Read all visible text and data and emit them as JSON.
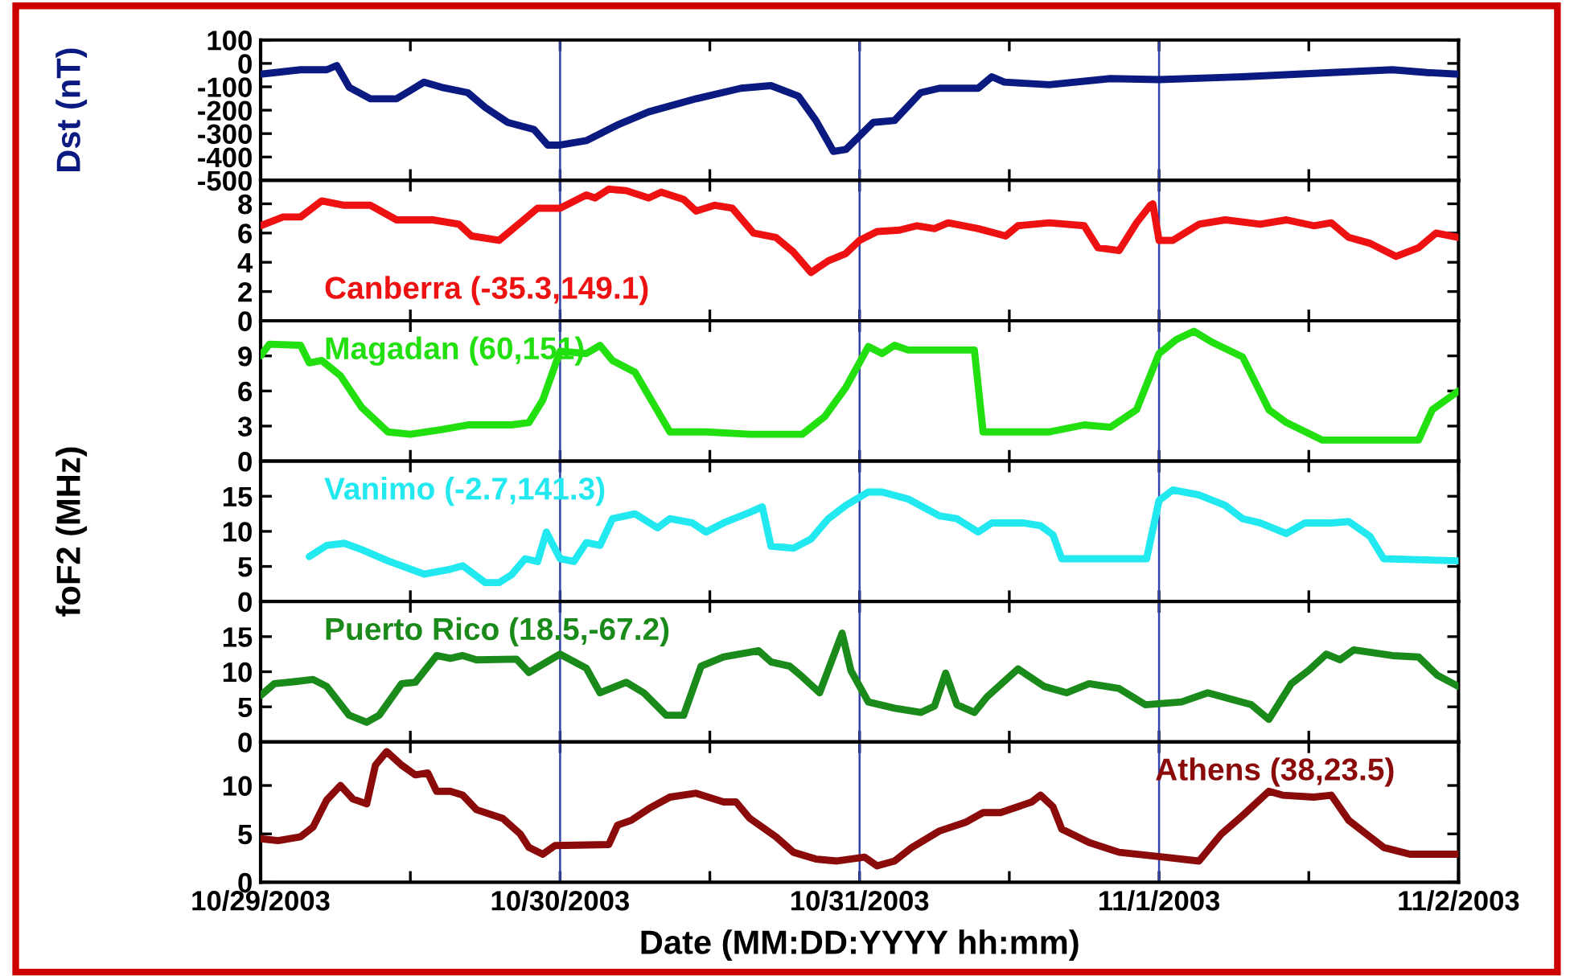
{
  "chart_data": [
    {
      "type": "line",
      "ylabel": "Dst (nT)",
      "xlim": [
        "2003-10-29",
        "2003-11-02"
      ],
      "ylim": [
        -500,
        100
      ],
      "yticks": [
        100,
        0,
        -100,
        -200,
        -300,
        -400,
        -500
      ],
      "tick_labels": "y",
      "grid": false,
      "xticks": [
        {
          "value": "2003-10-29",
          "label": null
        },
        {
          "value": "2003-10-29T12:00",
          "label": null
        },
        {
          "value": "2003-10-30",
          "label": null
        },
        {
          "value": "2003-10-30T12:00",
          "label": null
        },
        {
          "value": "2003-10-31",
          "label": null
        },
        {
          "value": "2003-10-31T12:00",
          "label": null
        },
        {
          "value": "2003-11-01",
          "label": null
        },
        {
          "value": "2003-11-01T12:00",
          "label": null
        },
        {
          "value": "2003-11-02",
          "label": null
        }
      ],
      "ref_lines": [
        {
          "axis": "x",
          "value": "2003-10-30",
          "color": "#3344aa"
        },
        {
          "axis": "x",
          "value": "2003-10-31",
          "color": "#3344aa"
        },
        {
          "axis": "x",
          "value": "2003-11-01",
          "color": "#3344aa"
        }
      ],
      "series": [
        {
          "color": "#0a1a80",
          "x": [
            "2003-10-29T00:00",
            "2003-10-29T03:12",
            "2003-10-29T05:18",
            "2003-10-29T06:06",
            "2003-10-29T07:06",
            "2003-10-29T08:48",
            "2003-10-29T10:54",
            "2003-10-29T13:06",
            "2003-10-29T14:30",
            "2003-10-29T16:36",
            "2003-10-29T18:00",
            "2003-10-29T19:48",
            "2003-10-29T21:54",
            "2003-10-29T23:00",
            "2003-10-30T00:00",
            "2003-10-30T02:06",
            "2003-10-30T04:36",
            "2003-10-30T07:06",
            "2003-10-30T10:54",
            "2003-10-30T14:30",
            "2003-10-30T16:54",
            "2003-10-30T19:06",
            "2003-10-30T20:30",
            "2003-10-30T21:54",
            "2003-10-30T22:54",
            "2003-10-31T01:06",
            "2003-10-31T02:48",
            "2003-10-31T04:54",
            "2003-10-31T06:24",
            "2003-10-31T09:30",
            "2003-10-31T10:36",
            "2003-10-31T11:36",
            "2003-10-31T15:12",
            "2003-10-31T20:06",
            "2003-11-01T00:00",
            "2003-11-01T06:42",
            "2003-11-01T13:48",
            "2003-11-01T18:42",
            "2003-11-01T21:30",
            "2003-11-02T00:00"
          ],
          "values": [
            -46,
            -27,
            -27,
            -9,
            -102,
            -151,
            -151,
            -80,
            -102,
            -125,
            -188,
            -252,
            -282,
            -349,
            -349,
            -330,
            -263,
            -207,
            -151,
            -106,
            -95,
            -140,
            -244,
            -376,
            -368,
            -252,
            -244,
            -125,
            -106,
            -106,
            -57,
            -80,
            -91,
            -65,
            -69,
            -57,
            -39,
            -27,
            -39,
            -46
          ]
        }
      ]
    },
    {
      "type": "line",
      "xlim": [
        "2003-10-29",
        "2003-11-02"
      ],
      "ylim": [
        0,
        9.6
      ],
      "yticks": [
        0,
        2,
        4,
        6,
        8
      ],
      "tick_labels": "y",
      "grid": false,
      "legend": "bottom left",
      "xticks": [
        {
          "value": "2003-10-29",
          "label": null
        },
        {
          "value": "2003-10-29T12:00",
          "label": null
        },
        {
          "value": "2003-10-30",
          "label": null
        },
        {
          "value": "2003-10-30T12:00",
          "label": null
        },
        {
          "value": "2003-10-31",
          "label": null
        },
        {
          "value": "2003-10-31T12:00",
          "label": null
        },
        {
          "value": "2003-11-01",
          "label": null
        },
        {
          "value": "2003-11-01T12:00",
          "label": null
        },
        {
          "value": "2003-11-02",
          "label": null
        }
      ],
      "ref_lines": [
        {
          "axis": "x",
          "value": "2003-10-30",
          "color": "#3344aa"
        },
        {
          "axis": "x",
          "value": "2003-10-31",
          "color": "#3344aa"
        },
        {
          "axis": "x",
          "value": "2003-11-01",
          "color": "#3344aa"
        }
      ],
      "series": [
        {
          "name": "Canberra (-35.3,149.1)",
          "color": "#ee1111",
          "x": [
            "2003-10-29T00:00",
            "2003-10-29T01:48",
            "2003-10-29T03:12",
            "2003-10-29T04:54",
            "2003-10-29T06:42",
            "2003-10-29T08:48",
            "2003-10-29T10:54",
            "2003-10-29T13:48",
            "2003-10-29T15:54",
            "2003-10-29T16:54",
            "2003-10-29T19:06",
            "2003-10-29T20:48",
            "2003-10-29T22:12",
            "2003-10-30T00:00",
            "2003-10-30T02:06",
            "2003-10-30T02:48",
            "2003-10-30T03:54",
            "2003-10-30T05:18",
            "2003-10-30T07:06",
            "2003-10-30T08:06",
            "2003-10-30T09:54",
            "2003-10-30T10:54",
            "2003-10-30T12:24",
            "2003-10-30T13:48",
            "2003-10-30T15:30",
            "2003-10-30T17:18",
            "2003-10-30T18:42",
            "2003-10-30T20:06",
            "2003-10-30T21:30",
            "2003-10-30T22:54",
            "2003-10-31T00:00",
            "2003-10-31T01:24",
            "2003-10-31T03:12",
            "2003-10-31T04:36",
            "2003-10-31T06:00",
            "2003-10-31T07:06",
            "2003-10-31T09:30",
            "2003-10-31T11:42",
            "2003-10-31T12:42",
            "2003-10-31T15:12",
            "2003-10-31T18:00",
            "2003-10-31T19:06",
            "2003-10-31T20:48",
            "2003-10-31T22:12",
            "2003-10-31T23:18",
            "2003-10-31T23:30",
            "2003-11-01T00:00",
            "2003-11-01T01:06",
            "2003-11-01T03:12",
            "2003-11-01T05:18",
            "2003-11-01T08:06",
            "2003-11-01T10:12",
            "2003-11-01T12:24",
            "2003-11-01T13:48",
            "2003-11-01T15:12",
            "2003-11-01T16:54",
            "2003-11-01T19:00",
            "2003-11-01T20:48",
            "2003-11-01T22:12",
            "2003-11-02T00:00"
          ],
          "values": [
            6.5,
            7.1,
            7.1,
            8.2,
            7.9,
            7.9,
            6.9,
            6.9,
            6.6,
            5.8,
            5.5,
            6.7,
            7.7,
            7.7,
            8.6,
            8.4,
            9.0,
            8.9,
            8.4,
            8.8,
            8.3,
            7.5,
            7.9,
            7.7,
            6.0,
            5.7,
            4.7,
            3.3,
            4.1,
            4.6,
            5.5,
            6.1,
            6.2,
            6.5,
            6.3,
            6.7,
            6.3,
            5.8,
            6.5,
            6.7,
            6.5,
            5.0,
            4.8,
            6.7,
            7.9,
            8.0,
            5.5,
            5.5,
            6.6,
            6.9,
            6.6,
            6.9,
            6.5,
            6.7,
            5.7,
            5.3,
            4.4,
            5.0,
            6.0,
            5.7
          ]
        }
      ]
    },
    {
      "type": "line",
      "xlim": [
        "2003-10-29",
        "2003-11-02"
      ],
      "ylim": [
        0,
        12
      ],
      "yticks": [
        0,
        3,
        6,
        9
      ],
      "tick_labels": "y",
      "grid": false,
      "legend": "top left",
      "xticks": [
        {
          "value": "2003-10-29",
          "label": null
        },
        {
          "value": "2003-10-29T12:00",
          "label": null
        },
        {
          "value": "2003-10-30",
          "label": null
        },
        {
          "value": "2003-10-30T12:00",
          "label": null
        },
        {
          "value": "2003-10-31",
          "label": null
        },
        {
          "value": "2003-10-31T12:00",
          "label": null
        },
        {
          "value": "2003-11-01",
          "label": null
        },
        {
          "value": "2003-11-01T12:00",
          "label": null
        },
        {
          "value": "2003-11-02",
          "label": null
        }
      ],
      "ref_lines": [
        {
          "axis": "x",
          "value": "2003-10-30",
          "color": "#3344aa"
        },
        {
          "axis": "x",
          "value": "2003-10-31",
          "color": "#3344aa"
        },
        {
          "axis": "x",
          "value": "2003-11-01",
          "color": "#3344aa"
        }
      ],
      "series": [
        {
          "name": "Magadan (60,151)",
          "color": "#22e010",
          "x": [
            "2003-10-29T00:00",
            "2003-10-29T00:42",
            "2003-10-29T03:12",
            "2003-10-29T03:54",
            "2003-10-29T04:54",
            "2003-10-29T06:24",
            "2003-10-29T08:06",
            "2003-10-29T10:12",
            "2003-10-29T12:00",
            "2003-10-29T14:30",
            "2003-10-29T16:36",
            "2003-10-29T20:06",
            "2003-10-29T21:30",
            "2003-10-29T22:36",
            "2003-10-30T00:00",
            "2003-10-30T02:06",
            "2003-10-30T03:12",
            "2003-10-30T04:12",
            "2003-10-30T06:00",
            "2003-10-30T08:48",
            "2003-10-30T11:42",
            "2003-10-30T15:12",
            "2003-10-30T19:24",
            "2003-10-30T21:12",
            "2003-10-30T22:54",
            "2003-10-31T00:42",
            "2003-10-31T01:48",
            "2003-10-31T02:48",
            "2003-10-31T03:54",
            "2003-10-31T09:12",
            "2003-10-31T09:54",
            "2003-10-31T15:12",
            "2003-10-31T18:00",
            "2003-10-31T20:06",
            "2003-10-31T22:12",
            "2003-11-01T00:00",
            "2003-11-01T01:24",
            "2003-11-01T02:48",
            "2003-11-01T04:12",
            "2003-11-01T06:42",
            "2003-11-01T08:48",
            "2003-11-01T10:12",
            "2003-11-01T13:06",
            "2003-11-01T20:48",
            "2003-11-01T21:54",
            "2003-11-02T00:00"
          ],
          "values": [
            9.0,
            10.0,
            9.9,
            8.4,
            8.6,
            7.3,
            4.6,
            2.5,
            2.3,
            2.7,
            3.1,
            3.1,
            3.3,
            5.2,
            9.4,
            9.2,
            9.9,
            8.6,
            7.6,
            2.5,
            2.5,
            2.3,
            2.3,
            3.8,
            6.3,
            9.8,
            9.2,
            9.9,
            9.5,
            9.5,
            2.5,
            2.5,
            3.1,
            2.9,
            4.4,
            9.2,
            10.4,
            11.1,
            10.2,
            8.9,
            4.4,
            3.3,
            1.8,
            1.8,
            4.4,
            6.0
          ]
        }
      ]
    },
    {
      "type": "line",
      "ylabel": "foF2 (MHz)",
      "xlim": [
        "2003-10-29",
        "2003-11-02"
      ],
      "ylim": [
        0,
        20
      ],
      "yticks": [
        0,
        5,
        10,
        15
      ],
      "tick_labels": "y",
      "grid": false,
      "legend": "top left",
      "xticks": [
        {
          "value": "2003-10-29",
          "label": null
        },
        {
          "value": "2003-10-29T12:00",
          "label": null
        },
        {
          "value": "2003-10-30",
          "label": null
        },
        {
          "value": "2003-10-30T12:00",
          "label": null
        },
        {
          "value": "2003-10-31",
          "label": null
        },
        {
          "value": "2003-10-31T12:00",
          "label": null
        },
        {
          "value": "2003-11-01",
          "label": null
        },
        {
          "value": "2003-11-01T12:00",
          "label": null
        },
        {
          "value": "2003-11-02",
          "label": null
        }
      ],
      "ref_lines": [
        {
          "axis": "x",
          "value": "2003-10-30",
          "color": "#3344aa"
        },
        {
          "axis": "x",
          "value": "2003-10-31",
          "color": "#3344aa"
        },
        {
          "axis": "x",
          "value": "2003-11-01",
          "color": "#3344aa"
        }
      ],
      "series": [
        {
          "name": "Vanimo (-2.7,141.3)",
          "color": "#22e8f0",
          "x": [
            "2003-10-29T03:54",
            "2003-10-29T05:18",
            "2003-10-29T06:42",
            "2003-10-29T08:06",
            "2003-10-29T10:12",
            "2003-10-29T13:06",
            "2003-10-29T15:12",
            "2003-10-29T16:12",
            "2003-10-29T18:00",
            "2003-10-29T19:06",
            "2003-10-29T20:06",
            "2003-10-29T21:12",
            "2003-10-29T22:12",
            "2003-10-29T22:54",
            "2003-10-30T00:00",
            "2003-10-30T01:06",
            "2003-10-30T02:06",
            "2003-10-30T03:12",
            "2003-10-30T04:12",
            "2003-10-30T06:00",
            "2003-10-30T07:48",
            "2003-10-30T08:48",
            "2003-10-30T10:36",
            "2003-10-30T11:42",
            "2003-10-30T13:06",
            "2003-10-30T15:12",
            "2003-10-30T16:12",
            "2003-10-30T16:54",
            "2003-10-30T18:42",
            "2003-10-30T20:06",
            "2003-10-30T21:30",
            "2003-10-30T22:54",
            "2003-10-31T00:42",
            "2003-10-31T01:48",
            "2003-10-31T03:54",
            "2003-10-31T06:24",
            "2003-10-31T07:48",
            "2003-10-31T09:30",
            "2003-10-31T10:36",
            "2003-10-31T13:06",
            "2003-10-31T14:30",
            "2003-10-31T15:30",
            "2003-10-31T16:12",
            "2003-10-31T23:00",
            "2003-11-01T00:00",
            "2003-11-01T01:06",
            "2003-11-01T03:12",
            "2003-11-01T05:18",
            "2003-11-01T06:42",
            "2003-11-01T08:06",
            "2003-11-01T10:12",
            "2003-11-01T11:42",
            "2003-11-01T13:48",
            "2003-11-01T15:12",
            "2003-11-01T16:54",
            "2003-11-01T18:00",
            "2003-11-02T00:00"
          ],
          "values": [
            6.4,
            8.0,
            8.3,
            7.4,
            5.8,
            3.9,
            4.6,
            5.1,
            2.7,
            2.7,
            3.8,
            6.1,
            5.7,
            9.9,
            6.1,
            5.7,
            8.4,
            8.0,
            11.8,
            12.5,
            10.5,
            11.8,
            11.2,
            9.9,
            11.2,
            12.7,
            13.5,
            7.9,
            7.6,
            8.9,
            11.8,
            13.7,
            15.6,
            15.6,
            14.6,
            12.2,
            11.8,
            9.9,
            11.2,
            11.2,
            10.8,
            9.5,
            6.1,
            6.1,
            14.4,
            15.9,
            15.2,
            13.7,
            11.8,
            11.2,
            9.7,
            11.2,
            11.2,
            11.4,
            9.3,
            6.1,
            5.8
          ]
        }
      ]
    },
    {
      "type": "line",
      "xlim": [
        "2003-10-29",
        "2003-11-02"
      ],
      "ylim": [
        0,
        20
      ],
      "yticks": [
        0,
        5,
        10,
        15
      ],
      "tick_labels": "y",
      "grid": false,
      "legend": "top left",
      "xticks": [
        {
          "value": "2003-10-29",
          "label": null
        },
        {
          "value": "2003-10-29T12:00",
          "label": null
        },
        {
          "value": "2003-10-30",
          "label": null
        },
        {
          "value": "2003-10-30T12:00",
          "label": null
        },
        {
          "value": "2003-10-31",
          "label": null
        },
        {
          "value": "2003-10-31T12:00",
          "label": null
        },
        {
          "value": "2003-11-01",
          "label": null
        },
        {
          "value": "2003-11-01T12:00",
          "label": null
        },
        {
          "value": "2003-11-02",
          "label": null
        }
      ],
      "ref_lines": [
        {
          "axis": "x",
          "value": "2003-10-30",
          "color": "#3344aa"
        },
        {
          "axis": "x",
          "value": "2003-10-31",
          "color": "#3344aa"
        },
        {
          "axis": "x",
          "value": "2003-11-01",
          "color": "#3344aa"
        }
      ],
      "series": [
        {
          "name": "Puerto Rico (18.5,-67.2)",
          "color": "#1a8a1a",
          "x": [
            "2003-10-29T00:00",
            "2003-10-29T01:06",
            "2003-10-29T02:48",
            "2003-10-29T04:12",
            "2003-10-29T05:18",
            "2003-10-29T07:06",
            "2003-10-29T08:30",
            "2003-10-29T09:30",
            "2003-10-29T11:18",
            "2003-10-29T12:24",
            "2003-10-29T14:06",
            "2003-10-29T15:12",
            "2003-10-29T16:12",
            "2003-10-29T17:18",
            "2003-10-29T20:30",
            "2003-10-29T21:30",
            "2003-10-30T00:00",
            "2003-10-30T02:06",
            "2003-10-30T03:12",
            "2003-10-30T05:18",
            "2003-10-30T06:42",
            "2003-10-30T08:30",
            "2003-10-30T09:54",
            "2003-10-30T11:18",
            "2003-10-30T13:06",
            "2003-10-30T15:54",
            "2003-10-30T16:54",
            "2003-10-30T18:24",
            "2003-10-30T19:24",
            "2003-10-30T20:48",
            "2003-10-30T22:36",
            "2003-10-30T23:18",
            "2003-10-31T00:42",
            "2003-10-31T02:48",
            "2003-10-31T04:54",
            "2003-10-31T06:00",
            "2003-10-31T06:54",
            "2003-10-31T07:48",
            "2003-10-31T09:12",
            "2003-10-31T10:12",
            "2003-10-31T12:42",
            "2003-10-31T14:48",
            "2003-10-31T16:36",
            "2003-10-31T18:24",
            "2003-10-31T20:48",
            "2003-10-31T22:54",
            "2003-11-01T01:48",
            "2003-11-01T03:54",
            "2003-11-01T07:24",
            "2003-11-01T08:48",
            "2003-11-01T10:36",
            "2003-11-01T12:00",
            "2003-11-01T13:24",
            "2003-11-01T14:30",
            "2003-11-01T15:36",
            "2003-11-01T18:42",
            "2003-11-01T20:48",
            "2003-11-01T22:18",
            "2003-11-02T00:00"
          ],
          "values": [
            6.6,
            8.3,
            8.6,
            8.9,
            7.9,
            3.8,
            2.8,
            3.8,
            8.3,
            8.5,
            12.3,
            11.9,
            12.3,
            11.7,
            11.8,
            9.9,
            12.5,
            10.5,
            7.0,
            8.5,
            7.0,
            3.8,
            3.8,
            10.8,
            12.1,
            13.0,
            11.4,
            10.8,
            9.3,
            7.0,
            15.5,
            10.2,
            5.7,
            4.8,
            4.2,
            5.1,
            9.8,
            5.3,
            4.2,
            6.4,
            10.4,
            7.9,
            7.0,
            8.3,
            7.6,
            5.3,
            5.7,
            7.0,
            5.3,
            3.2,
            8.3,
            10.2,
            12.5,
            11.7,
            13.1,
            12.3,
            12.1,
            9.5,
            7.9
          ]
        }
      ]
    },
    {
      "type": "line",
      "xlabel": "Date (MM:DD:YYYY hh:mm)",
      "xlim": [
        "2003-10-29",
        "2003-11-02"
      ],
      "ylim": [
        0,
        14.5
      ],
      "yticks": [
        0,
        5,
        10
      ],
      "grid": false,
      "legend": "top right",
      "xticks": [
        {
          "value": "2003-10-29",
          "label": "10/29/2003"
        },
        {
          "value": "2003-10-29T12:00",
          "label": null
        },
        {
          "value": "2003-10-30",
          "label": "10/30/2003"
        },
        {
          "value": "2003-10-30T12:00",
          "label": null
        },
        {
          "value": "2003-10-31",
          "label": "10/31/2003"
        },
        {
          "value": "2003-10-31T12:00",
          "label": null
        },
        {
          "value": "2003-11-01",
          "label": "11/1/2003"
        },
        {
          "value": "2003-11-01T12:00",
          "label": null
        },
        {
          "value": "2003-11-02",
          "label": "11/2/2003"
        }
      ],
      "ref_lines": [
        {
          "axis": "x",
          "value": "2003-10-30",
          "color": "#3344aa"
        },
        {
          "axis": "x",
          "value": "2003-10-31",
          "color": "#3344aa"
        },
        {
          "axis": "x",
          "value": "2003-11-01",
          "color": "#3344aa"
        }
      ],
      "series": [
        {
          "name": "Athens (38,23.5)",
          "color": "#8b0a0a",
          "x": [
            "2003-10-29T00:00",
            "2003-10-29T01:24",
            "2003-10-29T03:12",
            "2003-10-29T04:12",
            "2003-10-29T05:18",
            "2003-10-29T06:24",
            "2003-10-29T07:24",
            "2003-10-29T08:30",
            "2003-10-29T09:12",
            "2003-10-29T10:06",
            "2003-10-29T11:18",
            "2003-10-29T12:24",
            "2003-10-29T13:24",
            "2003-10-29T14:06",
            "2003-10-29T15:12",
            "2003-10-29T16:12",
            "2003-10-29T17:18",
            "2003-10-29T19:24",
            "2003-10-29T20:48",
            "2003-10-29T21:30",
            "2003-10-29T22:36",
            "2003-10-29T23:36",
            "2003-10-30T03:54",
            "2003-10-30T04:36",
            "2003-10-30T05:42",
            "2003-10-30T07:06",
            "2003-10-30T08:48",
            "2003-10-30T10:54",
            "2003-10-30T13:06",
            "2003-10-30T14:06",
            "2003-10-30T15:12",
            "2003-10-30T17:18",
            "2003-10-30T18:42",
            "2003-10-30T20:30",
            "2003-10-30T22:12",
            "2003-10-31T00:24",
            "2003-10-31T01:24",
            "2003-10-31T02:48",
            "2003-10-31T04:12",
            "2003-10-31T06:24",
            "2003-10-31T08:30",
            "2003-10-31T09:54",
            "2003-10-31T11:18",
            "2003-10-31T13:48",
            "2003-10-31T14:30",
            "2003-10-31T15:30",
            "2003-10-31T16:12",
            "2003-10-31T18:24",
            "2003-10-31T20:48",
            "2003-11-01T00:24",
            "2003-11-01T03:12",
            "2003-11-01T05:00",
            "2003-11-01T06:42",
            "2003-11-01T08:48",
            "2003-11-01T09:54",
            "2003-11-01T12:24",
            "2003-11-01T13:48",
            "2003-11-01T15:12",
            "2003-11-01T16:36",
            "2003-11-01T18:00",
            "2003-11-01T20:06",
            "2003-11-02T00:00"
          ],
          "values": [
            4.5,
            4.3,
            4.7,
            5.7,
            8.5,
            10.0,
            8.6,
            8.1,
            12.1,
            13.5,
            12.1,
            11.1,
            11.3,
            9.4,
            9.4,
            9.0,
            7.5,
            6.6,
            5.0,
            3.6,
            2.9,
            3.8,
            3.9,
            5.9,
            6.4,
            7.6,
            8.8,
            9.2,
            8.3,
            8.3,
            6.6,
            4.7,
            3.1,
            2.4,
            2.2,
            2.6,
            1.7,
            2.2,
            3.6,
            5.3,
            6.2,
            7.2,
            7.2,
            8.3,
            9.0,
            7.8,
            5.5,
            4.1,
            3.1,
            2.6,
            2.2,
            5.0,
            6.9,
            9.4,
            9.0,
            8.8,
            9.0,
            6.4,
            5.0,
            3.6,
            2.9,
            2.9
          ]
        }
      ]
    }
  ]
}
